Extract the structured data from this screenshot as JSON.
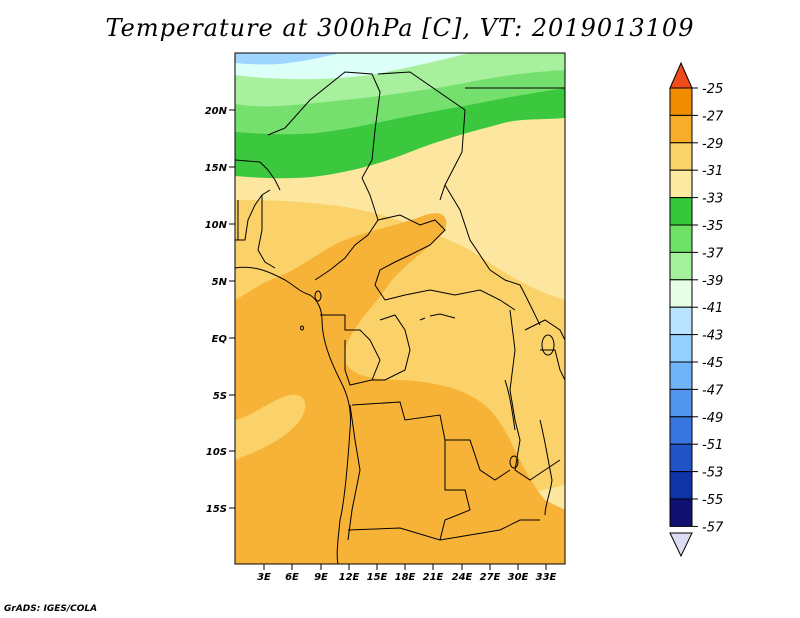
{
  "title": "Temperature at 300hPa [C], VT: 2019013109",
  "credit": "GrADS: IGES/COLA",
  "map": {
    "lat_labels": [
      "20N",
      "15N",
      "10N",
      "5N",
      "EQ",
      "5S",
      "10S",
      "15S"
    ],
    "lon_labels": [
      "3E",
      "6E",
      "9E",
      "12E",
      "15E",
      "18E",
      "21E",
      "24E",
      "27E",
      "30E",
      "33E"
    ]
  },
  "colorbar": {
    "labels": [
      "-25",
      "-27",
      "-29",
      "-31",
      "-33",
      "-35",
      "-37",
      "-39",
      "-41",
      "-43",
      "-45",
      "-47",
      "-49",
      "-51",
      "-53",
      "-55",
      "-57"
    ],
    "colors": [
      "#f05a1e",
      "#f08c00",
      "#f7ad2a",
      "#fad36a",
      "#fbeaa0",
      "#34c83a",
      "#6ee267",
      "#a3f19b",
      "#e6ffe6",
      "#b9e3ff",
      "#94d0ff",
      "#6fb4f9",
      "#5295ee",
      "#3a76e0",
      "#2354c6",
      "#0f34a8",
      "#101070"
    ],
    "top_color": "#f04b1a",
    "bottom_color": "#dcdcf5"
  },
  "palette": {
    "orange_dark": "#f7b238",
    "orange_light": "#fbd26a",
    "yellow_light": "#fde7a0",
    "green_dark": "#3cc83e",
    "green_mid": "#75e06d",
    "green_light": "#a8f09e",
    "cyan_light": "#dcfff8",
    "blue_light": "#9ed6ff"
  }
}
